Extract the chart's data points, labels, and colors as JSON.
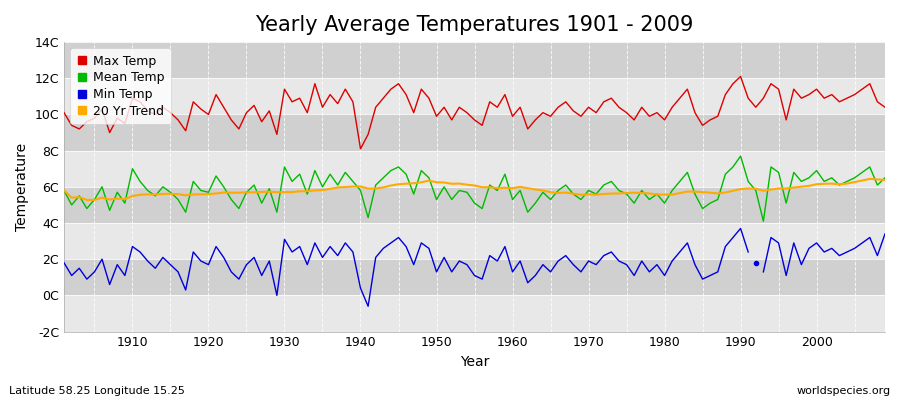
{
  "title": "Yearly Average Temperatures 1901 - 2009",
  "xlabel": "Year",
  "ylabel": "Temperature",
  "lat_lon_text": "Latitude 58.25 Longitude 15.25",
  "source_text": "worldspecies.org",
  "years": [
    1901,
    1902,
    1903,
    1904,
    1905,
    1906,
    1907,
    1908,
    1909,
    1910,
    1911,
    1912,
    1913,
    1914,
    1915,
    1916,
    1917,
    1918,
    1919,
    1920,
    1921,
    1922,
    1923,
    1924,
    1925,
    1926,
    1927,
    1928,
    1929,
    1930,
    1931,
    1932,
    1933,
    1934,
    1935,
    1936,
    1937,
    1938,
    1939,
    1940,
    1941,
    1942,
    1943,
    1944,
    1945,
    1946,
    1947,
    1948,
    1949,
    1950,
    1951,
    1952,
    1953,
    1954,
    1955,
    1956,
    1957,
    1958,
    1959,
    1960,
    1961,
    1962,
    1963,
    1964,
    1965,
    1966,
    1967,
    1968,
    1969,
    1970,
    1971,
    1972,
    1973,
    1974,
    1975,
    1976,
    1977,
    1978,
    1979,
    1980,
    1981,
    1982,
    1983,
    1984,
    1985,
    1986,
    1987,
    1988,
    1989,
    1990,
    1991,
    1992,
    1993,
    1994,
    1995,
    1996,
    1997,
    1998,
    1999,
    2000,
    2001,
    2002,
    2003,
    2004,
    2005,
    2006,
    2007,
    2008,
    2009
  ],
  "max_temp": [
    10.1,
    9.4,
    9.2,
    9.6,
    9.8,
    10.3,
    9.0,
    9.8,
    9.5,
    10.9,
    10.7,
    10.2,
    10.0,
    10.4,
    10.1,
    9.7,
    9.1,
    10.7,
    10.3,
    10.0,
    11.1,
    10.4,
    9.7,
    9.2,
    10.1,
    10.5,
    9.6,
    10.2,
    8.9,
    11.4,
    10.7,
    10.9,
    10.1,
    11.7,
    10.4,
    11.1,
    10.6,
    11.4,
    10.7,
    8.1,
    8.9,
    10.4,
    10.9,
    11.4,
    11.7,
    11.1,
    10.1,
    11.4,
    10.9,
    9.9,
    10.4,
    9.7,
    10.4,
    10.1,
    9.7,
    9.4,
    10.7,
    10.4,
    11.1,
    9.9,
    10.4,
    9.2,
    9.7,
    10.1,
    9.9,
    10.4,
    10.7,
    10.2,
    9.9,
    10.4,
    10.1,
    10.7,
    10.9,
    10.4,
    10.1,
    9.7,
    10.4,
    9.9,
    10.1,
    9.7,
    10.4,
    10.9,
    11.4,
    10.1,
    9.4,
    9.7,
    9.9,
    11.1,
    11.7,
    12.1,
    10.9,
    10.4,
    10.9,
    11.7,
    11.4,
    9.7,
    11.4,
    10.9,
    11.1,
    11.4,
    10.9,
    11.1,
    10.7,
    10.9,
    11.1,
    11.4,
    11.7,
    10.7,
    10.4
  ],
  "mean_temp": [
    5.8,
    5.0,
    5.5,
    4.8,
    5.3,
    6.0,
    4.7,
    5.7,
    5.1,
    7.0,
    6.3,
    5.8,
    5.5,
    6.0,
    5.7,
    5.3,
    4.6,
    6.3,
    5.8,
    5.7,
    6.6,
    6.0,
    5.3,
    4.8,
    5.7,
    6.1,
    5.1,
    5.9,
    4.6,
    7.1,
    6.3,
    6.7,
    5.6,
    6.9,
    6.0,
    6.7,
    6.1,
    6.8,
    6.3,
    5.8,
    4.3,
    6.1,
    6.5,
    6.9,
    7.1,
    6.7,
    5.6,
    6.9,
    6.5,
    5.3,
    6.0,
    5.3,
    5.8,
    5.7,
    5.1,
    4.8,
    6.1,
    5.8,
    6.7,
    5.3,
    5.8,
    4.6,
    5.1,
    5.7,
    5.3,
    5.8,
    6.1,
    5.6,
    5.3,
    5.8,
    5.6,
    6.1,
    6.3,
    5.8,
    5.6,
    5.1,
    5.8,
    5.3,
    5.6,
    5.1,
    5.8,
    6.3,
    6.8,
    5.6,
    4.8,
    5.1,
    5.3,
    6.7,
    7.1,
    7.7,
    6.3,
    5.8,
    4.1,
    7.1,
    6.8,
    5.1,
    6.8,
    6.3,
    6.5,
    6.9,
    6.3,
    6.5,
    6.1,
    6.3,
    6.5,
    6.8,
    7.1,
    6.1,
    6.5
  ],
  "min_temp": [
    1.8,
    1.1,
    1.5,
    0.9,
    1.3,
    2.0,
    0.6,
    1.7,
    1.1,
    2.7,
    2.4,
    1.9,
    1.5,
    2.1,
    1.7,
    1.3,
    0.3,
    2.4,
    1.9,
    1.7,
    2.7,
    2.1,
    1.3,
    0.9,
    1.7,
    2.1,
    1.1,
    1.9,
    0.0,
    3.1,
    2.4,
    2.7,
    1.7,
    2.9,
    2.1,
    2.7,
    2.2,
    2.9,
    2.4,
    0.4,
    -0.6,
    2.1,
    2.6,
    2.9,
    3.2,
    2.7,
    1.7,
    2.9,
    2.6,
    1.3,
    2.1,
    1.3,
    1.9,
    1.7,
    1.1,
    0.9,
    2.2,
    1.9,
    2.7,
    1.3,
    1.9,
    0.7,
    1.1,
    1.7,
    1.3,
    1.9,
    2.2,
    1.7,
    1.3,
    1.9,
    1.7,
    2.2,
    2.4,
    1.9,
    1.7,
    1.1,
    1.9,
    1.3,
    1.7,
    1.1,
    1.9,
    2.4,
    2.9,
    1.7,
    0.9,
    1.1,
    1.3,
    2.7,
    3.2,
    3.7,
    2.4,
    1.9,
    1.3,
    3.2,
    2.9,
    1.1,
    2.9,
    1.7,
    2.6,
    2.9,
    2.4,
    2.6,
    2.2,
    2.4,
    2.6,
    2.9,
    3.2,
    2.2,
    3.4
  ],
  "max_color": "#dd0000",
  "mean_color": "#00bb00",
  "min_color": "#0000dd",
  "trend_color": "#ffaa00",
  "fig_bg_color": "#ffffff",
  "plot_bg_light": "#e8e8e8",
  "plot_bg_dark": "#d0d0d0",
  "grid_color": "#ffffff",
  "ylim": [
    -2,
    14
  ],
  "yticks": [
    -2,
    0,
    2,
    4,
    6,
    8,
    10,
    12,
    14
  ],
  "ytick_labels": [
    "-2C",
    "0C",
    "2C",
    "4C",
    "6C",
    "8C",
    "10C",
    "12C",
    "14C"
  ],
  "xlim_start": 1901,
  "xlim_end": 2009,
  "title_fontsize": 15,
  "axis_label_fontsize": 10,
  "tick_fontsize": 9,
  "legend_fontsize": 9,
  "trend_window": 20,
  "isolated_point_year": 1992,
  "isolated_point_value": 1.8
}
